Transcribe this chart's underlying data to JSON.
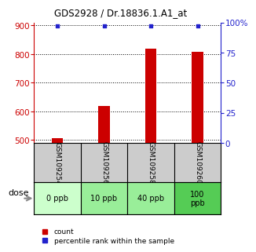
{
  "title": "GDS2928 / Dr.18836.1.A1_at",
  "samples": [
    "GSM109254",
    "GSM109256",
    "GSM109258",
    "GSM109260"
  ],
  "doses": [
    "0 ppb",
    "10 ppb",
    "40 ppb",
    "100\nppb"
  ],
  "counts": [
    507,
    618,
    820,
    808
  ],
  "percentile_ranks": [
    97,
    97,
    97,
    97
  ],
  "ylim_left": [
    490,
    910
  ],
  "ylim_right": [
    0,
    100
  ],
  "yticks_left": [
    500,
    600,
    700,
    800,
    900
  ],
  "yticks_right": [
    0,
    25,
    50,
    75,
    100
  ],
  "bar_color": "#cc0000",
  "dot_color": "#2222cc",
  "bar_width": 0.25,
  "dose_bg_colors": [
    "#ccffcc",
    "#99ee99",
    "#99ee99",
    "#55cc55"
  ],
  "left_tick_color": "#cc0000",
  "right_tick_color": "#2222cc",
  "dose_label": "dose",
  "legend_count_label": "count",
  "legend_pct_label": "percentile rank within the sample",
  "sample_label_bg": "#cccccc"
}
